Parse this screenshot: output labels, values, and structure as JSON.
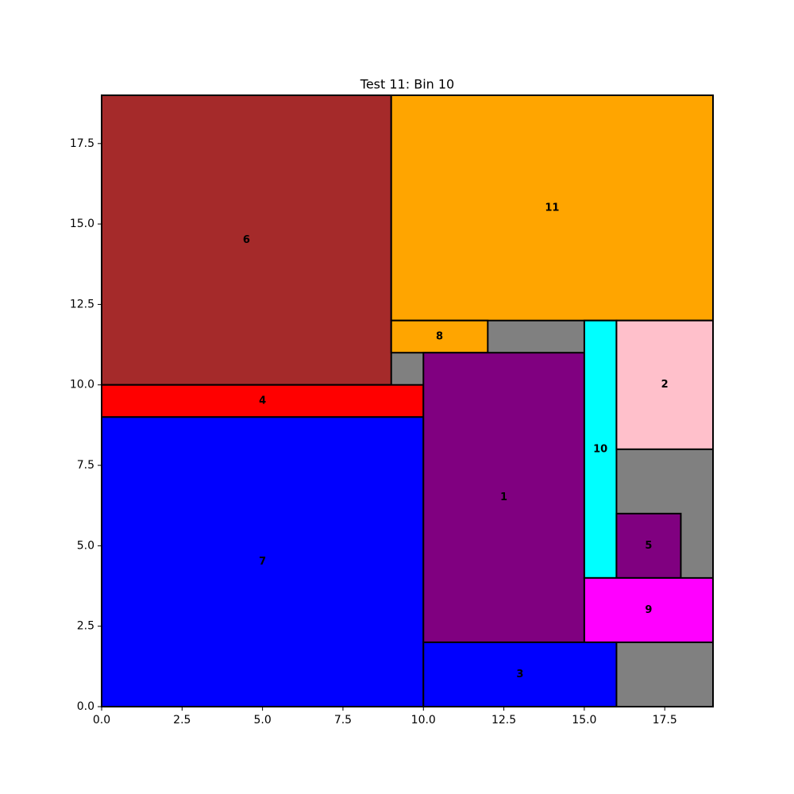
{
  "chart_data": {
    "type": "rect_packing",
    "title": "Test 11: Bin 10",
    "xlim": [
      0,
      19
    ],
    "ylim": [
      0,
      19
    ],
    "xticks": [
      {
        "value": 0,
        "label": "0.0"
      },
      {
        "value": 2.5,
        "label": "2.5"
      },
      {
        "value": 5,
        "label": "5.0"
      },
      {
        "value": 7.5,
        "label": "7.5"
      },
      {
        "value": 10,
        "label": "10.0"
      },
      {
        "value": 12.5,
        "label": "12.5"
      },
      {
        "value": 15,
        "label": "15.0"
      },
      {
        "value": 17.5,
        "label": "17.5"
      }
    ],
    "yticks": [
      {
        "value": 0,
        "label": "0.0"
      },
      {
        "value": 2.5,
        "label": "2.5"
      },
      {
        "value": 5,
        "label": "5.0"
      },
      {
        "value": 7.5,
        "label": "7.5"
      },
      {
        "value": 10,
        "label": "10.0"
      },
      {
        "value": 12.5,
        "label": "12.5"
      },
      {
        "value": 15,
        "label": "15.0"
      },
      {
        "value": 17.5,
        "label": "17.5"
      }
    ],
    "free_color": "#808080",
    "free_spaces": [
      {
        "x": 0,
        "y": 0,
        "width": 19,
        "height": 19
      }
    ],
    "items": [
      {
        "label": "6",
        "x": 0,
        "y": 10,
        "width": 9,
        "height": 9,
        "color": "#a52a2a"
      },
      {
        "label": "11",
        "x": 9,
        "y": 12,
        "width": 10,
        "height": 7,
        "color": "#ffa500"
      },
      {
        "label": "8",
        "x": 9,
        "y": 11,
        "width": 3,
        "height": 1,
        "color": "#ffa500"
      },
      {
        "label": "4",
        "x": 0,
        "y": 9,
        "width": 10,
        "height": 1,
        "color": "#ff0000"
      },
      {
        "label": "7",
        "x": 0,
        "y": 0,
        "width": 10,
        "height": 9,
        "color": "#0000ff"
      },
      {
        "label": "1",
        "x": 10,
        "y": 2,
        "width": 5,
        "height": 9,
        "color": "#800080"
      },
      {
        "label": "10",
        "x": 15,
        "y": 4,
        "width": 1,
        "height": 8,
        "color": "#00ffff"
      },
      {
        "label": "2",
        "x": 16,
        "y": 8,
        "width": 3,
        "height": 4,
        "color": "#ffc0cb"
      },
      {
        "label": "5",
        "x": 16,
        "y": 4,
        "width": 2,
        "height": 2,
        "color": "#800080"
      },
      {
        "label": "9",
        "x": 15,
        "y": 2,
        "width": 4,
        "height": 2,
        "color": "#ff00ff"
      },
      {
        "label": "3",
        "x": 10,
        "y": 0,
        "width": 6,
        "height": 2,
        "color": "#0000ff"
      }
    ]
  }
}
